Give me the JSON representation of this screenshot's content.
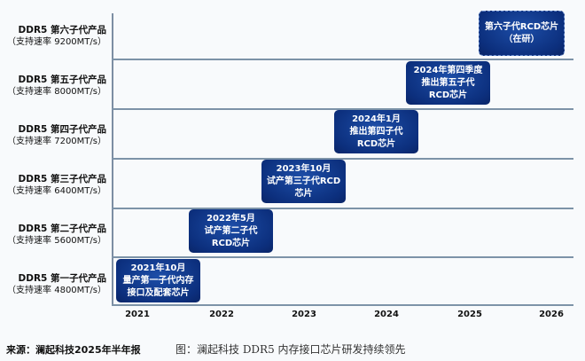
{
  "rows": [
    {
      "title": "DDR5 第六子代产品",
      "speed": "（支持速率 9200MT/s）"
    },
    {
      "title": "DDR5 第五子代产品",
      "speed": "（支持速率 8000MT/s）"
    },
    {
      "title": "DDR5 第四子代产品",
      "speed": "（支持速率 7200MT/s）"
    },
    {
      "title": "DDR5 第三子代产品",
      "speed": "（支持速率 6400MT/s）"
    },
    {
      "title": "DDR5 第二子代产品",
      "speed": "（支持速率 5600MT/s）"
    },
    {
      "title": "DDR5 第一子代产品",
      "speed": "（支持速率 4800MT/s）"
    }
  ],
  "years": [
    "2021",
    "2022",
    "2023",
    "2024",
    "2025",
    "2026"
  ],
  "milestones": [
    {
      "lines": [
        "2021年10月",
        "量产第一子代内存",
        "接口及配套芯片"
      ]
    },
    {
      "lines": [
        "2022年5月",
        "试产第二子代",
        "RCD芯片"
      ]
    },
    {
      "lines": [
        "2023年10月",
        "试产第三子代RCD",
        "芯片"
      ]
    },
    {
      "lines": [
        "2024年1月",
        "推出第四子代",
        "RCD芯片"
      ]
    },
    {
      "lines": [
        "2024年第四季度",
        "推出第五子代",
        "RCD芯片"
      ]
    },
    {
      "lines": [
        "第六子代RCD芯片",
        "（在研）"
      ]
    }
  ],
  "colors": {
    "box": "#0c2f7d",
    "line": "#7d93a8"
  },
  "footer": {
    "source": "来源：澜起科技2025年半年报",
    "caption": "图：澜起科技 DDR5 内存接口芯片研发持续领先"
  }
}
